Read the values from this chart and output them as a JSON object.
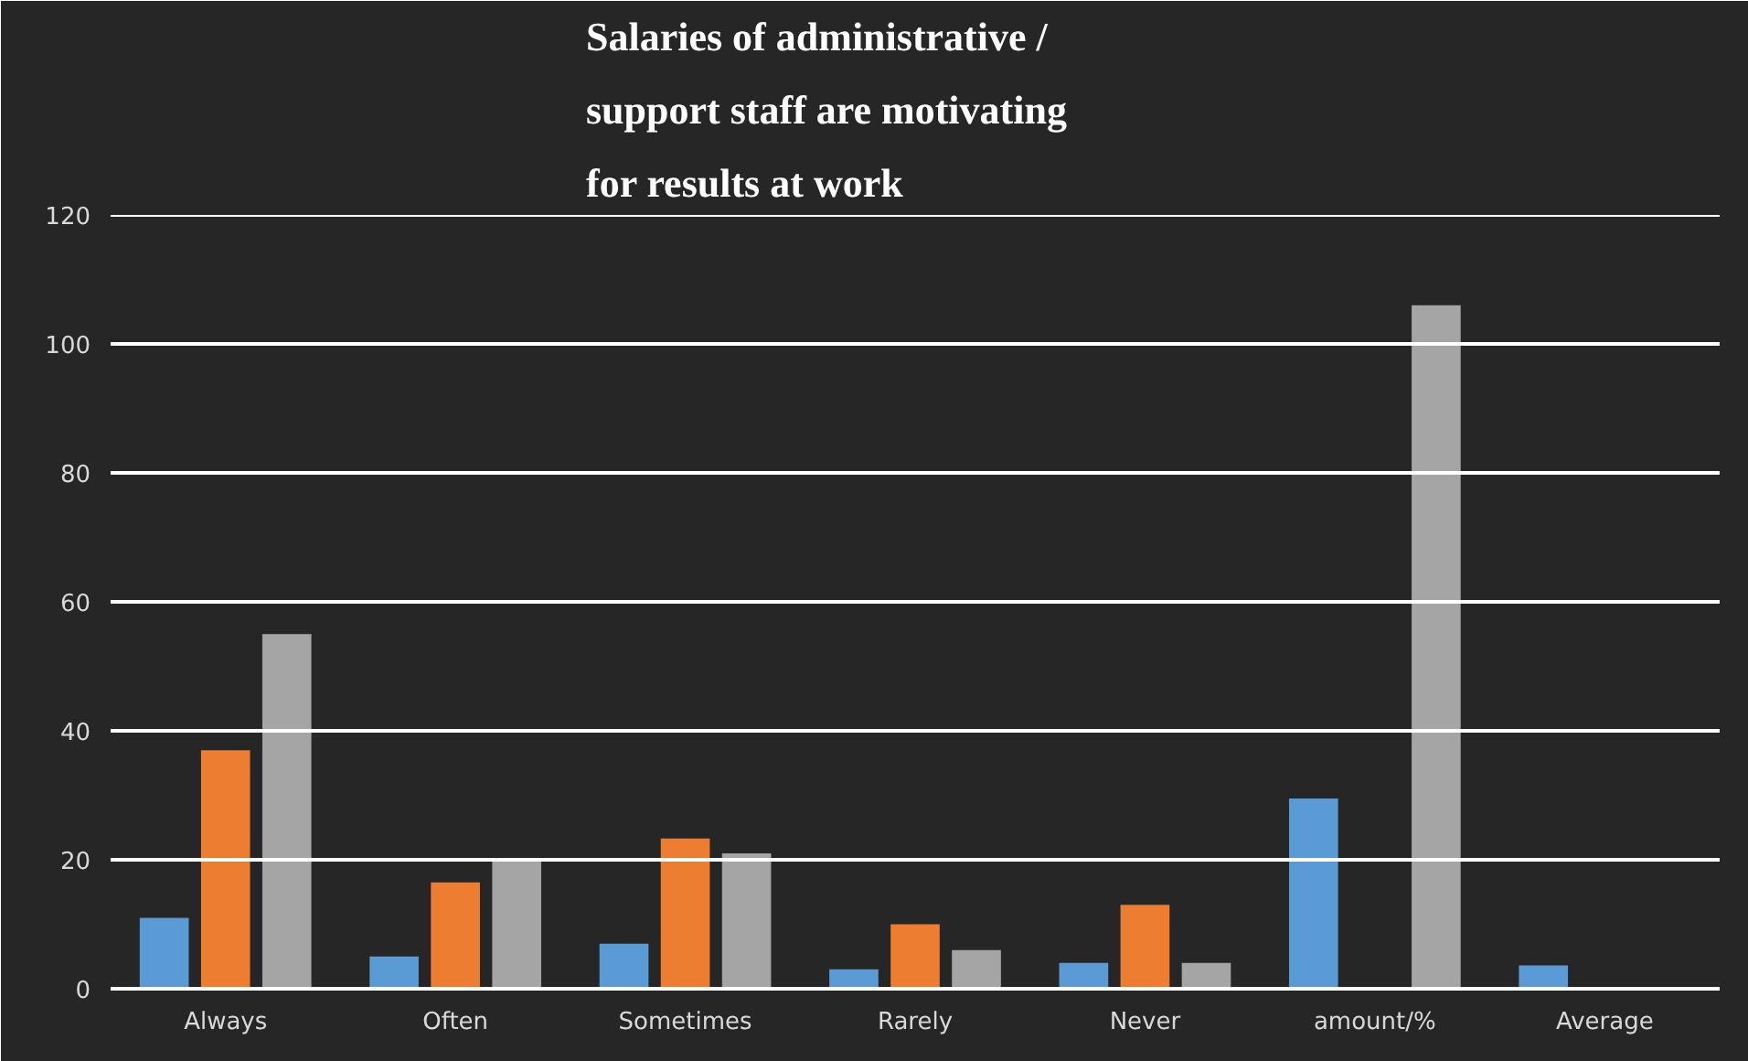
{
  "chart_data": {
    "type": "bar",
    "title": "Salaries of administrative / support staff are motivating for results at work",
    "categories": [
      "Always",
      "Often",
      "Sometimes",
      "Rarely",
      "Never",
      "amount/%",
      "Average"
    ],
    "series": [
      {
        "color": "#5b9bd5",
        "values": [
          11,
          5,
          7,
          3,
          4,
          29.5,
          3.6
        ]
      },
      {
        "color": "#ed7d31",
        "values": [
          37,
          16.5,
          23.3,
          10,
          13,
          null,
          null
        ]
      },
      {
        "color": "#a5a5a5",
        "values": [
          55,
          20,
          21,
          6,
          4,
          106,
          null
        ]
      }
    ],
    "ylim": [
      0,
      120
    ],
    "yticks": [
      0,
      20,
      40,
      60,
      80,
      100,
      120
    ],
    "grid": "y"
  }
}
